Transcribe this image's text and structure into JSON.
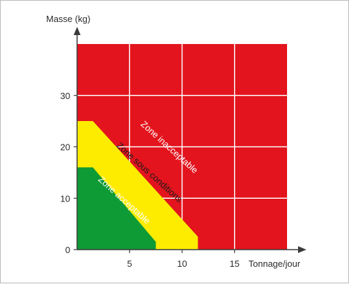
{
  "chart_data": {
    "type": "area",
    "ylabel": "Masse (kg)",
    "xlabel": "Tonnage/jour",
    "xlim": [
      0,
      20
    ],
    "ylim": [
      0,
      40
    ],
    "xticks": [
      5,
      10,
      15
    ],
    "yticks": [
      0,
      10,
      20,
      30
    ],
    "grid": true,
    "zones": [
      {
        "label": "Zone inacceptable",
        "color": "#e3141d",
        "text_color": "#ffffff",
        "polygon": [
          [
            0,
            0
          ],
          [
            20,
            0
          ],
          [
            20,
            40
          ],
          [
            0,
            40
          ]
        ]
      },
      {
        "label": "Zone sous conditions",
        "color": "#fdec00",
        "text_color": "#1a1a1a",
        "polygon": [
          [
            0,
            0
          ],
          [
            11.5,
            0
          ],
          [
            11.5,
            2.5
          ],
          [
            1.5,
            25
          ],
          [
            0,
            25
          ]
        ]
      },
      {
        "label": "Zone acceptable",
        "color": "#0e9a35",
        "text_color": "#ffffff",
        "polygon": [
          [
            0,
            0
          ],
          [
            7.5,
            0
          ],
          [
            7.5,
            1.5
          ],
          [
            1.5,
            16
          ],
          [
            0,
            16
          ]
        ]
      }
    ],
    "label_positions": [
      {
        "zone": 0,
        "x": 8.6,
        "y": 19.5
      },
      {
        "zone": 1,
        "x": 6.7,
        "y": 14.6
      },
      {
        "zone": 2,
        "x": 4.3,
        "y": 9.2
      }
    ],
    "axis_color": "#3a3a3a",
    "grid_color": "#ffffff"
  }
}
